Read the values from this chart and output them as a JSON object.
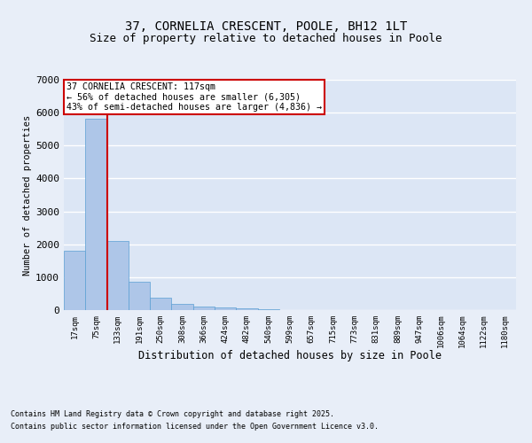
{
  "title1": "37, CORNELIA CRESCENT, POOLE, BH12 1LT",
  "title2": "Size of property relative to detached houses in Poole",
  "xlabel": "Distribution of detached houses by size in Poole",
  "ylabel": "Number of detached properties",
  "categories": [
    "17sqm",
    "75sqm",
    "133sqm",
    "191sqm",
    "250sqm",
    "308sqm",
    "366sqm",
    "424sqm",
    "482sqm",
    "540sqm",
    "599sqm",
    "657sqm",
    "715sqm",
    "773sqm",
    "831sqm",
    "889sqm",
    "947sqm",
    "1006sqm",
    "1064sqm",
    "1122sqm",
    "1180sqm"
  ],
  "values": [
    1800,
    5820,
    2100,
    850,
    380,
    200,
    110,
    80,
    60,
    20,
    10,
    8,
    5,
    3,
    2,
    2,
    1,
    1,
    1,
    0,
    0
  ],
  "bar_color": "#aec6e8",
  "bar_edge_color": "#5a9fd4",
  "bg_color": "#dce6f5",
  "fig_bg_color": "#e8eef8",
  "grid_color": "#ffffff",
  "annotation_box_color": "#cc0000",
  "vline_color": "#cc0000",
  "annotation_title": "37 CORNELIA CRESCENT: 117sqm",
  "annotation_line1": "← 56% of detached houses are smaller (6,305)",
  "annotation_line2": "43% of semi-detached houses are larger (4,836) →",
  "ylim": [
    0,
    7000
  ],
  "yticks": [
    0,
    1000,
    2000,
    3000,
    4000,
    5000,
    6000,
    7000
  ],
  "footnote1": "Contains HM Land Registry data © Crown copyright and database right 2025.",
  "footnote2": "Contains public sector information licensed under the Open Government Licence v3.0.",
  "title_fontsize": 10,
  "subtitle_fontsize": 9
}
